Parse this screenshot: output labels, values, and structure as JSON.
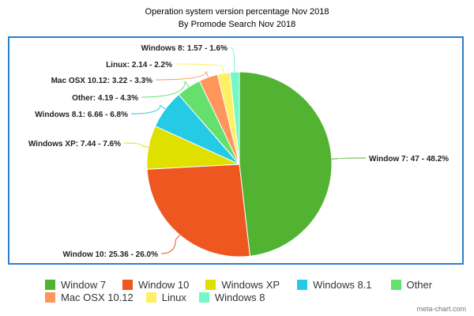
{
  "chart_data": {
    "type": "pie",
    "title": "Operation system version percentage Nov 2018",
    "subtitle": "By Promode Search Nov 2018",
    "legend_position": "bottom",
    "slices": [
      {
        "name": "Window 7",
        "value": 47,
        "percent": 48.2,
        "color": "#52b332",
        "label": "Window 7: 47 - 48.2%"
      },
      {
        "name": "Window 10",
        "value": 25.36,
        "percent": 26.0,
        "color": "#ee5720",
        "label": "Window 10: 25.36 - 26.0%"
      },
      {
        "name": "Windows XP",
        "value": 7.44,
        "percent": 7.6,
        "color": "#dfdf00",
        "label": "Windows XP: 7.44 - 7.6%"
      },
      {
        "name": "Windows 8.1",
        "value": 6.66,
        "percent": 6.8,
        "color": "#25cbe5",
        "label": "Windows 8.1: 6.66 - 6.8%"
      },
      {
        "name": "Other",
        "value": 4.19,
        "percent": 4.3,
        "color": "#66e06d",
        "label": "Other: 4.19 - 4.3%"
      },
      {
        "name": "Mac OSX 10.12",
        "value": 3.22,
        "percent": 3.3,
        "color": "#fe955b",
        "label": "Mac OSX 10.12: 3.22 - 3.3%"
      },
      {
        "name": "Linux",
        "value": 2.14,
        "percent": 2.2,
        "color": "#fff063",
        "label": "Linux: 2.14 - 2.2%"
      },
      {
        "name": "Windows 8",
        "value": 1.57,
        "percent": 1.6,
        "color": "#72f7c8",
        "label": "Windows 8: 1.57 - 1.6%"
      }
    ]
  },
  "credit": "meta-chart.com"
}
